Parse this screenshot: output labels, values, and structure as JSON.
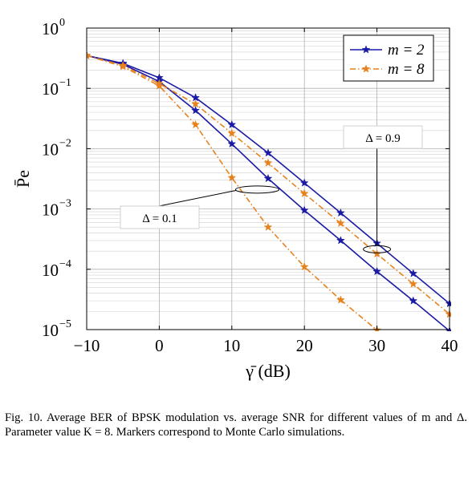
{
  "chart_data": {
    "type": "line",
    "xlabel": "γ̄ (dB)",
    "ylabel": "P̄e",
    "xlim": [
      -10,
      40
    ],
    "ylim": [
      1e-05,
      1
    ],
    "yscale": "log",
    "grid": true,
    "legend_position": "top-right",
    "x_ticks": [
      "−10",
      "0",
      "10",
      "20",
      "30",
      "40"
    ],
    "y_ticks": [
      {
        "base": "10",
        "exp": "0"
      },
      {
        "base": "10",
        "exp": "−1"
      },
      {
        "base": "10",
        "exp": "−2"
      },
      {
        "base": "10",
        "exp": "−3"
      },
      {
        "base": "10",
        "exp": "−4"
      },
      {
        "base": "10",
        "exp": "−5"
      }
    ],
    "legend": [
      {
        "label": "m = 2",
        "color": "#1a1aa6",
        "style": "solid",
        "marker": "star"
      },
      {
        "label": "m = 8",
        "color": "#e8821e",
        "style": "dashdot",
        "marker": "star"
      }
    ],
    "series": [
      {
        "m": 2,
        "delta": 0.9,
        "color": "#1a1aa6",
        "style": "solid",
        "x": [
          -10,
          -5,
          0,
          5,
          10,
          15,
          20,
          25,
          30,
          35,
          40
        ],
        "y": [
          0.35,
          0.26,
          0.15,
          0.07,
          0.025,
          0.0085,
          0.0027,
          0.00086,
          0.00027,
          8.5e-05,
          2.7e-05
        ]
      },
      {
        "m": 2,
        "delta": 0.1,
        "color": "#1a1aa6",
        "style": "solid",
        "x": [
          -10,
          -5,
          0,
          5,
          10,
          15,
          20,
          25,
          30,
          35,
          40
        ],
        "y": [
          0.35,
          0.25,
          0.13,
          0.043,
          0.012,
          0.0032,
          0.00095,
          0.0003,
          9.2e-05,
          3e-05,
          9.5e-06
        ]
      },
      {
        "m": 8,
        "delta": 0.9,
        "color": "#e8821e",
        "style": "dashdot",
        "x": [
          -10,
          -5,
          0,
          5,
          10,
          15,
          20,
          25,
          30,
          35,
          40
        ],
        "y": [
          0.35,
          0.24,
          0.12,
          0.055,
          0.018,
          0.0058,
          0.0018,
          0.00058,
          0.00018,
          5.7e-05,
          1.8e-05
        ]
      },
      {
        "m": 8,
        "delta": 0.1,
        "color": "#e8821e",
        "style": "dashdot",
        "x": [
          -10,
          -5,
          0,
          5,
          10,
          15,
          20,
          25,
          30
        ],
        "y": [
          0.35,
          0.23,
          0.11,
          0.025,
          0.0033,
          0.0005,
          0.00011,
          3.1e-05,
          9.8e-06
        ]
      }
    ],
    "annotations": [
      {
        "text": "Δ = 0.9"
      },
      {
        "text": "Δ = 0.1"
      }
    ]
  },
  "caption": {
    "text": "Fig. 10.   Average BER of BPSK modulation vs. average SNR for different values of m and Δ. Parameter value K = 8. Markers correspond to Monte Carlo simulations."
  }
}
